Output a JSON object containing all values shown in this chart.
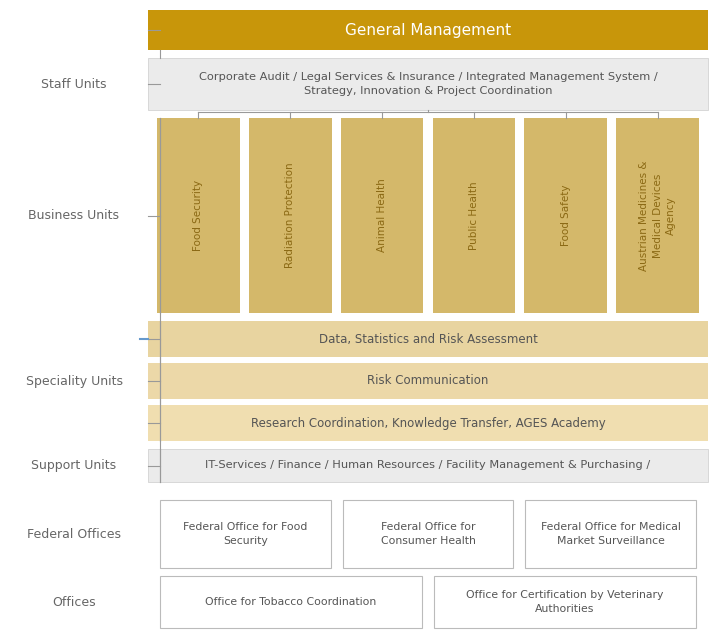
{
  "bg_color": "#ffffff",
  "title": "General Management",
  "title_bg": "#C8960A",
  "title_text_color": "#ffffff",
  "staff_units_label": "Staff Units",
  "staff_units_text": "Corporate Audit / Legal Services & Insurance / Integrated Management System /\nStrategy, Innovation & Project Coordination",
  "staff_units_bg": "#ebebeb",
  "business_units_label": "Business Units",
  "business_units": [
    "Food Security",
    "Radiation Protection",
    "Animal Health",
    "Public Health",
    "Food Safety",
    "Austrian Medicines &\nMedical Devices\nAgency"
  ],
  "business_unit_bg": "#D4B86A",
  "specialty_units_label": "Speciality Units",
  "specialty_units": [
    "Data, Statistics and Risk Assessment",
    "Risk Communication",
    "Research Coordination, Knowledge Transfer, AGES Academy"
  ],
  "specialty_colors": [
    "#E8D4A0",
    "#ECD8A8",
    "#F0DEB0"
  ],
  "support_units_label": "Support Units",
  "support_units_text": "IT-Services / Finance / Human Resources / Facility Management & Purchasing /",
  "support_bg": "#ebebeb",
  "federal_offices_label": "Federal Offices",
  "federal_offices": [
    "Federal Office for Food\nSecurity",
    "Federal Office for\nConsumer Health",
    "Federal Office for Medical\nMarket Surveillance"
  ],
  "offices_label": "Offices",
  "offices": [
    "Office for Tobacco Coordination",
    "Office for Certification by Veterinary\nAuthorities"
  ],
  "text_color_body": "#555555",
  "text_color_bu": "#8B6914",
  "label_color": "#666666",
  "line_color": "#999999",
  "blue_tick_color": "#6699CC"
}
